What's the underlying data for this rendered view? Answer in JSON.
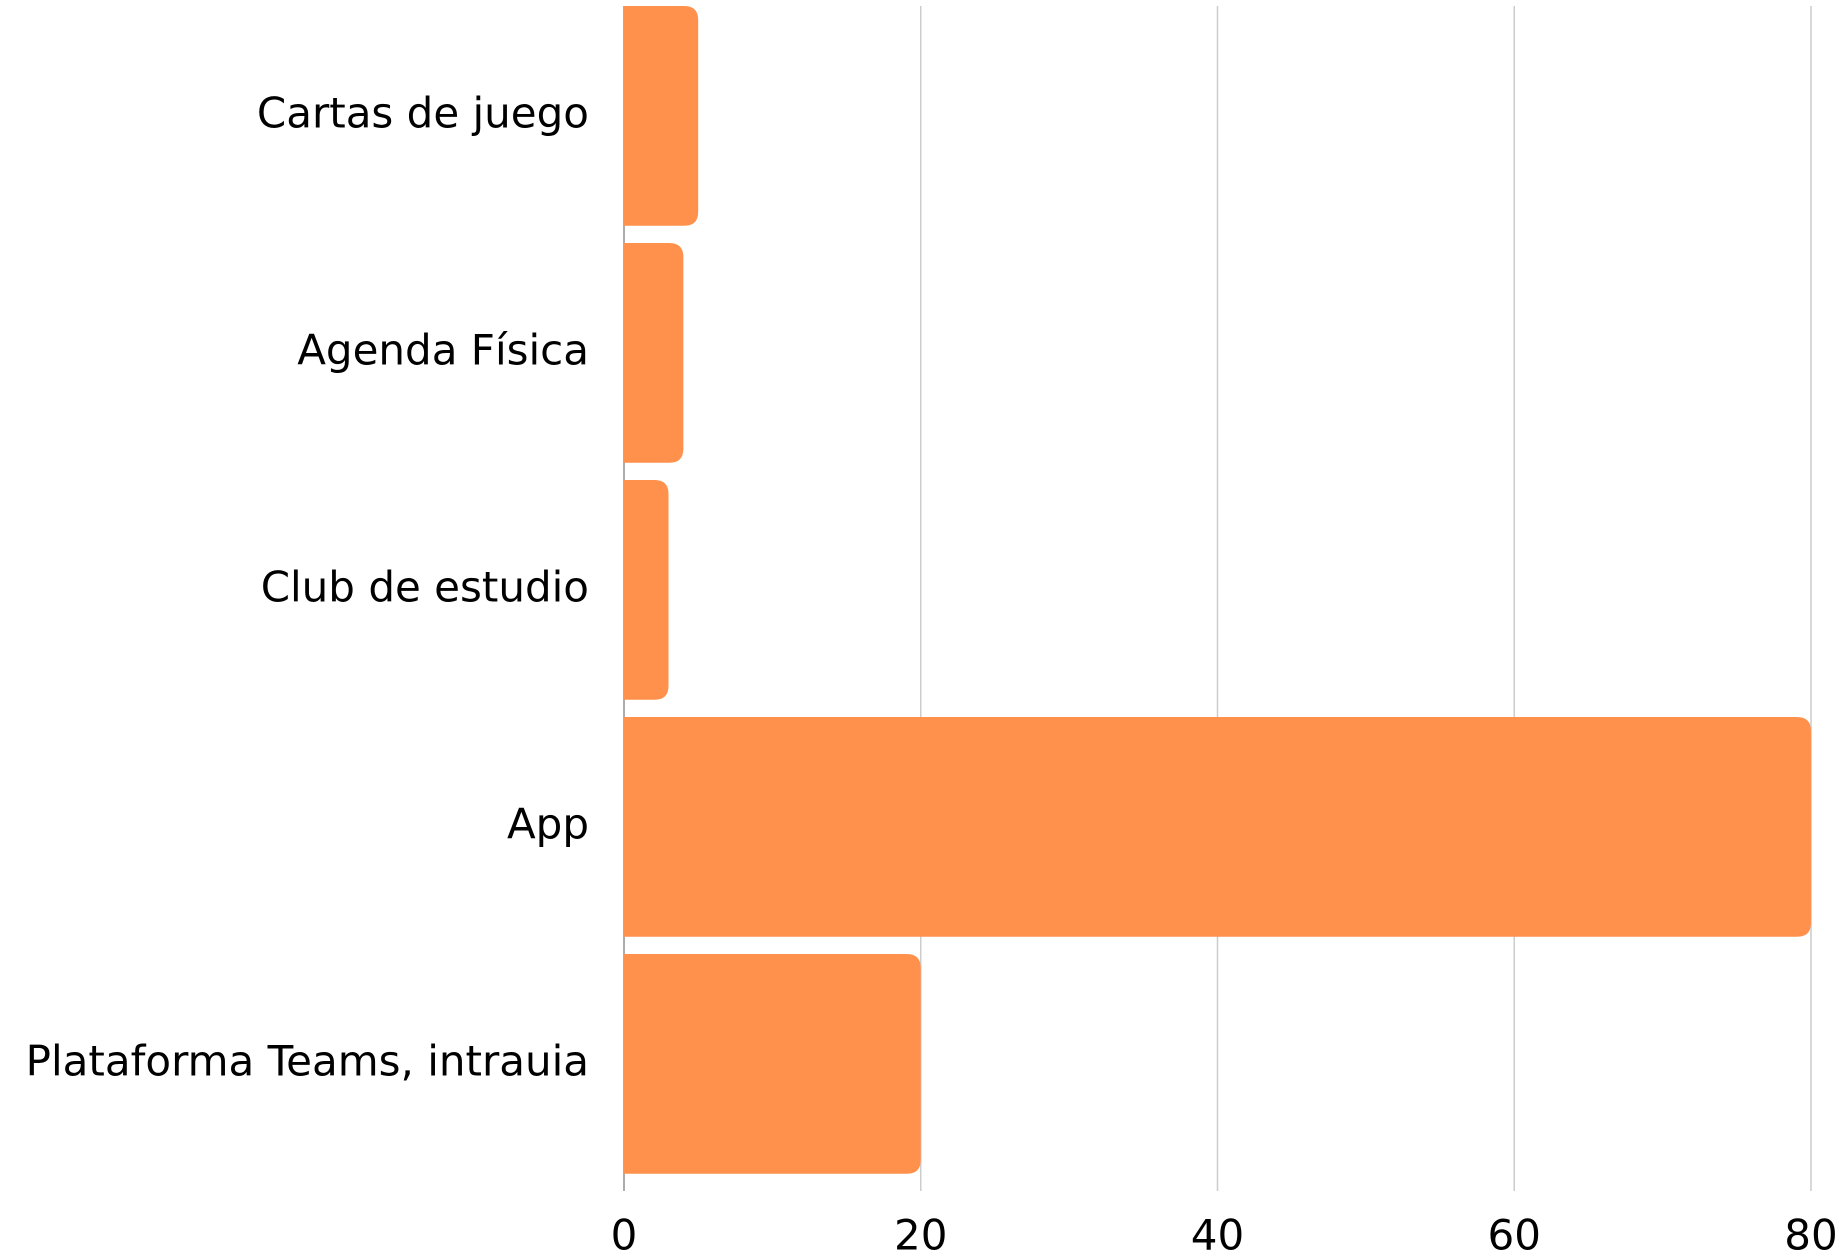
{
  "chart_data": {
    "type": "bar",
    "orientation": "horizontal",
    "categories": [
      "Cartas de juego",
      "Agenda Física",
      "Club de estudio",
      "App",
      "Plataforma Teams, intrauia"
    ],
    "values": [
      5,
      4,
      3,
      80,
      20
    ],
    "color": "#ff914d",
    "xlim": [
      0,
      80
    ],
    "xticks": [
      0,
      20,
      40,
      60,
      80
    ],
    "grid": true
  }
}
